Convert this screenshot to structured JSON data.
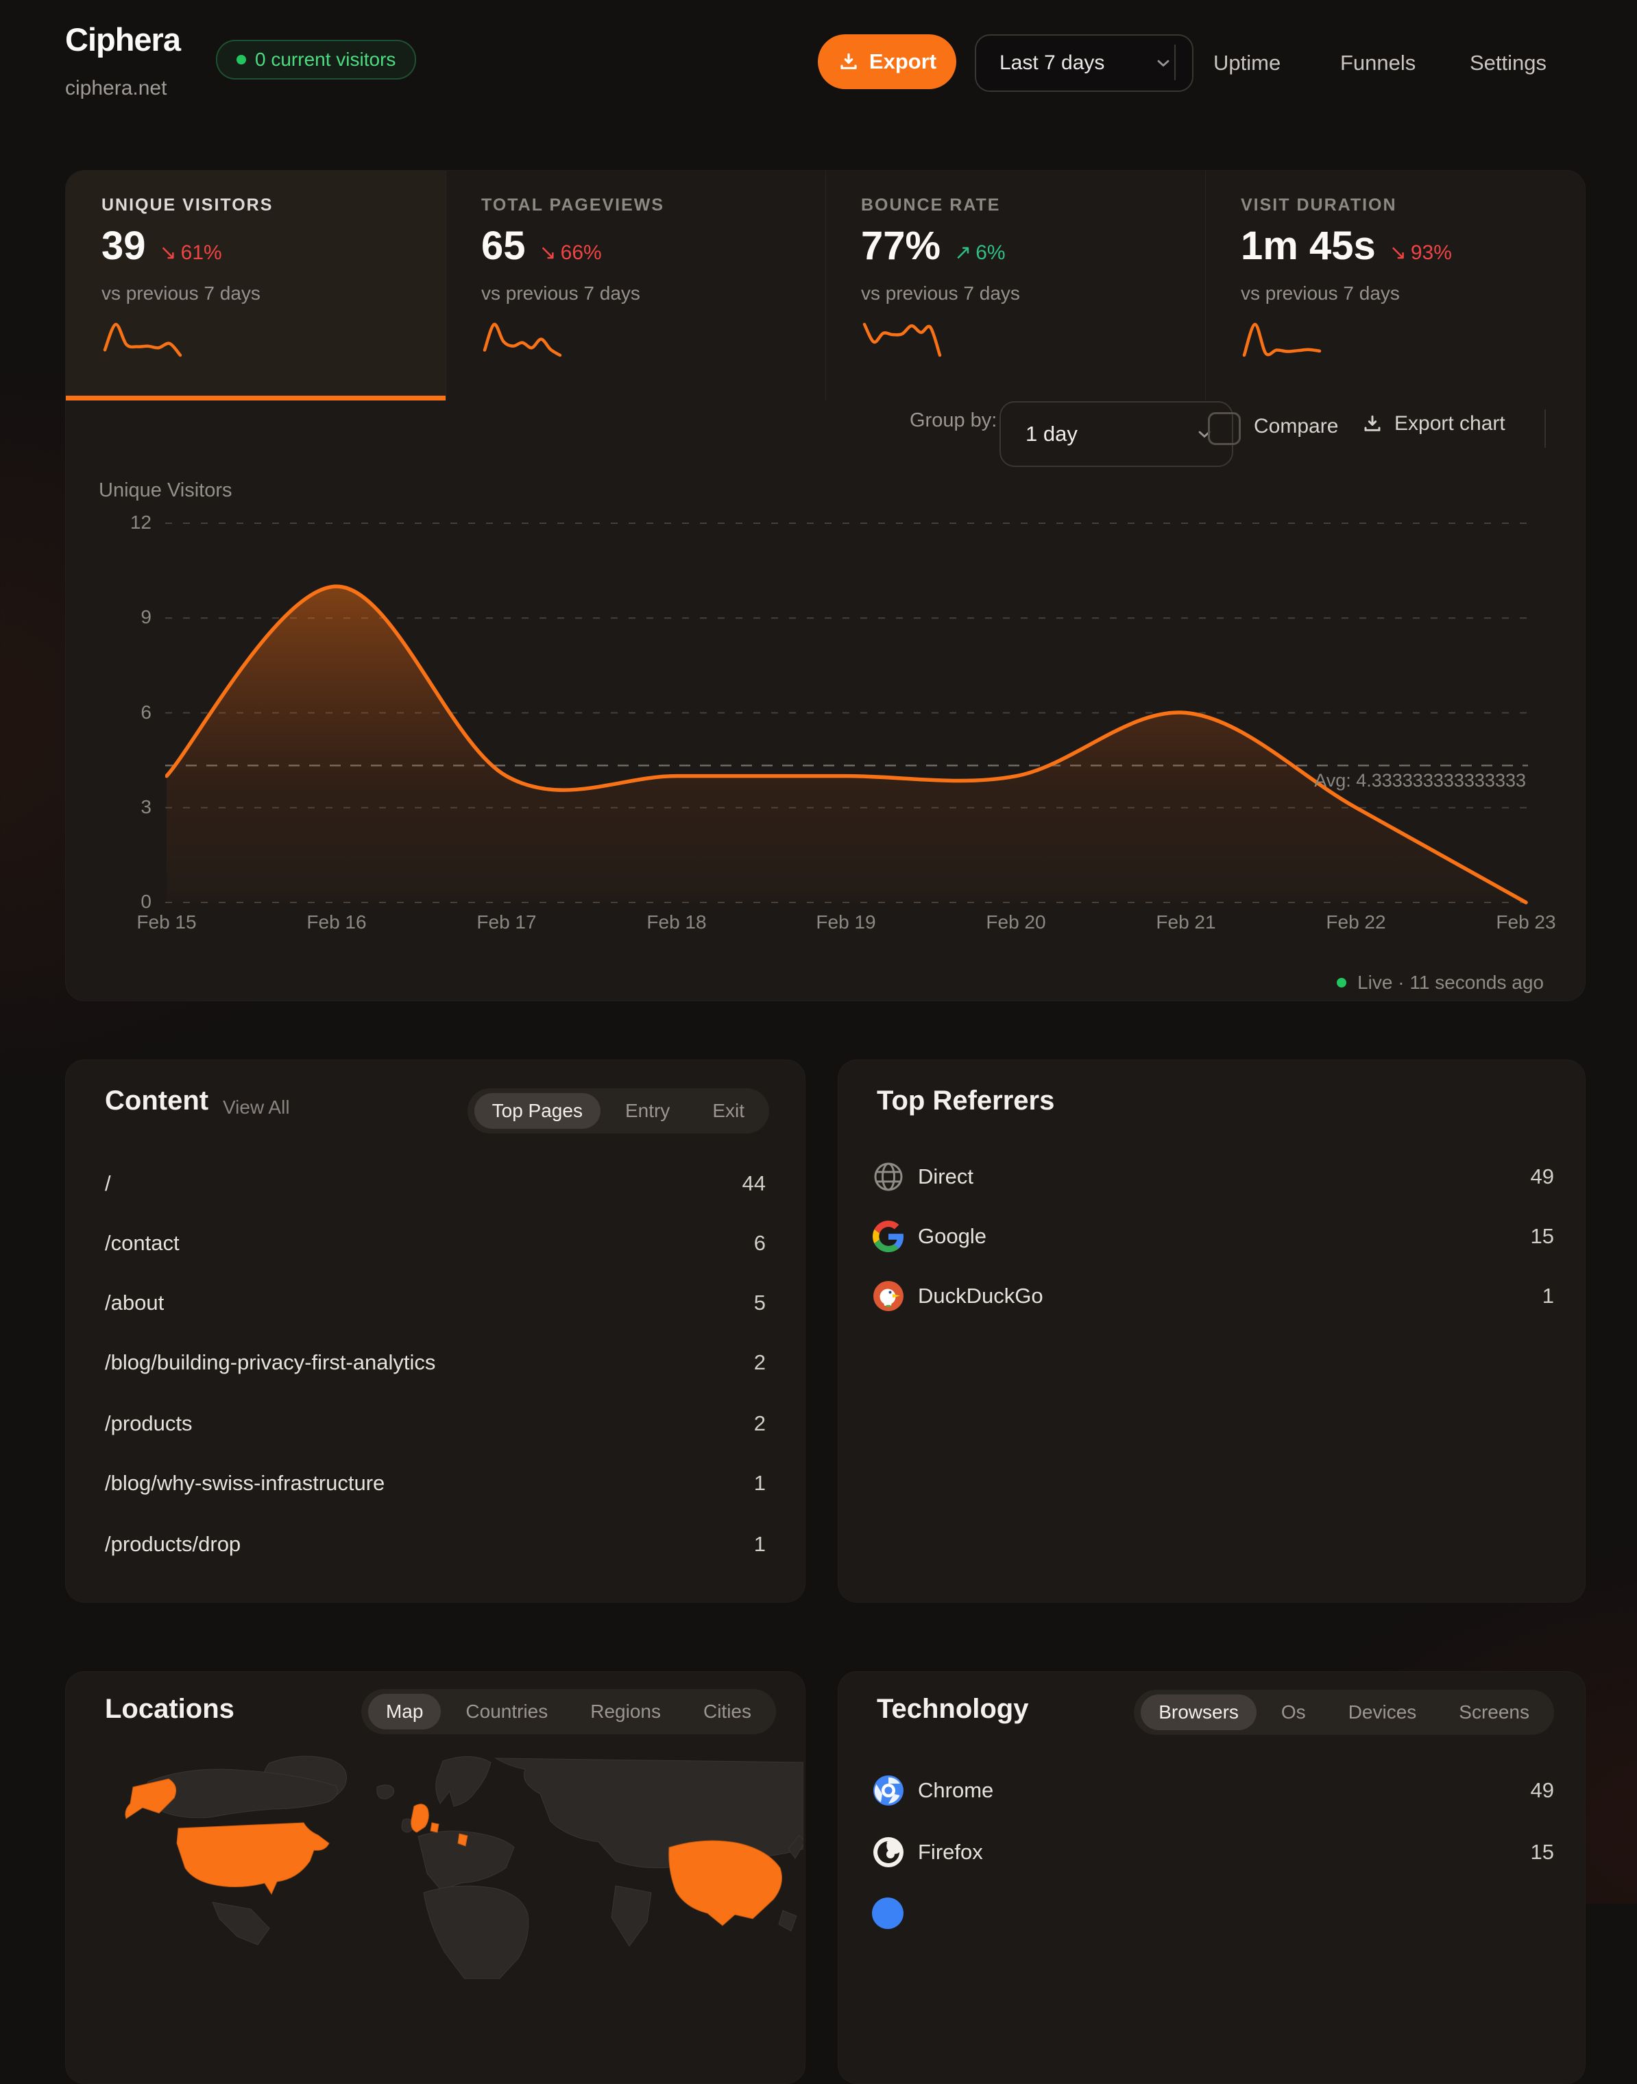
{
  "header": {
    "title": "Ciphera",
    "domain": "ciphera.net",
    "visitors_badge": "0 current visitors",
    "export_label": "Export",
    "date_range": "Last 7 days",
    "nav": [
      {
        "label": "Uptime"
      },
      {
        "label": "Funnels"
      },
      {
        "label": "Settings"
      }
    ]
  },
  "stats": [
    {
      "label": "UNIQUE VISITORS",
      "value": "39",
      "delta_arrow": "↘",
      "delta": "61%",
      "direction": "down",
      "compare": "vs previous 7 days",
      "spark": [
        4.2,
        9,
        5.2,
        4.8,
        4.9,
        4.6,
        5.4,
        3.2
      ]
    },
    {
      "label": "TOTAL PAGEVIEWS",
      "value": "65",
      "delta_arrow": "↘",
      "delta": "66%",
      "direction": "down",
      "compare": "vs previous 7 days",
      "spark": [
        4.5,
        9,
        6,
        5.2,
        5.8,
        4.9,
        6.4,
        4.6,
        3.6
      ]
    },
    {
      "label": "BOUNCE RATE",
      "value": "77%",
      "delta_arrow": "↗",
      "delta": "6%",
      "direction": "up",
      "compare": "vs previous 7 days",
      "spark": [
        6.8,
        4.4,
        5.6,
        5.4,
        5.5,
        6.6,
        5.7,
        6.4,
        2.6
      ]
    },
    {
      "label": "VISIT DURATION",
      "value": "1m 45s",
      "delta_arrow": "↘",
      "delta": "93%",
      "direction": "down",
      "compare": "vs previous 7 days",
      "spark": [
        2.2,
        8.8,
        2.6,
        3.3,
        3.0,
        3.2,
        3.4,
        3.1
      ]
    }
  ],
  "chart_controls": {
    "group_by_label": "Group by:",
    "group_by_value": "1 day",
    "compare_label": "Compare",
    "export_chart_label": "Export chart"
  },
  "chart_data": {
    "type": "area",
    "series_label": "Unique Visitors",
    "x": [
      "Feb 15",
      "Feb 16",
      "Feb 17",
      "Feb 18",
      "Feb 19",
      "Feb 20",
      "Feb 21",
      "Feb 22",
      "Feb 23"
    ],
    "values": [
      4,
      10,
      4,
      4,
      4,
      4,
      6,
      3,
      0
    ],
    "ylim": [
      0,
      12
    ],
    "yticks": [
      12,
      9,
      6,
      3,
      0
    ],
    "avg": 4.333333333333333,
    "avg_label": "Avg: 4.333333333333333",
    "line_color": "#f97316",
    "grid": "dashed",
    "legend_position": "none"
  },
  "live_status": "Live · 11 seconds ago",
  "content": {
    "title": "Content",
    "view_all": "View All",
    "tabs": [
      "Top Pages",
      "Entry",
      "Exit"
    ],
    "active_tab": "Top Pages",
    "rows": [
      {
        "path": "/",
        "count": "44"
      },
      {
        "path": "/contact",
        "count": "6"
      },
      {
        "path": "/about",
        "count": "5"
      },
      {
        "path": "/blog/building-privacy-first-analytics",
        "count": "2"
      },
      {
        "path": "/products",
        "count": "2"
      },
      {
        "path": "/blog/why-swiss-infrastructure",
        "count": "1"
      },
      {
        "path": "/products/drop",
        "count": "1"
      }
    ]
  },
  "referrers": {
    "title": "Top Referrers",
    "rows": [
      {
        "name": "Direct",
        "count": "49",
        "icon": "globe-icon"
      },
      {
        "name": "Google",
        "count": "15",
        "icon": "google-icon"
      },
      {
        "name": "DuckDuckGo",
        "count": "1",
        "icon": "duckduckgo-icon"
      }
    ]
  },
  "locations": {
    "title": "Locations",
    "tabs": [
      "Map",
      "Countries",
      "Regions",
      "Cities"
    ],
    "active_tab": "Map",
    "map_highlight_color": "#f97316"
  },
  "technology": {
    "title": "Technology",
    "tabs": [
      "Browsers",
      "Os",
      "Devices",
      "Screens"
    ],
    "active_tab": "Browsers",
    "rows": [
      {
        "name": "Chrome",
        "count": "49",
        "icon": "chrome-icon"
      },
      {
        "name": "Firefox",
        "count": "15",
        "icon": "firefox-icon"
      }
    ]
  },
  "colors": {
    "accent": "#f97316",
    "negative": "#ef4444",
    "positive": "#2fbf84",
    "live": "#22c55e",
    "panel": "#1c1917"
  }
}
